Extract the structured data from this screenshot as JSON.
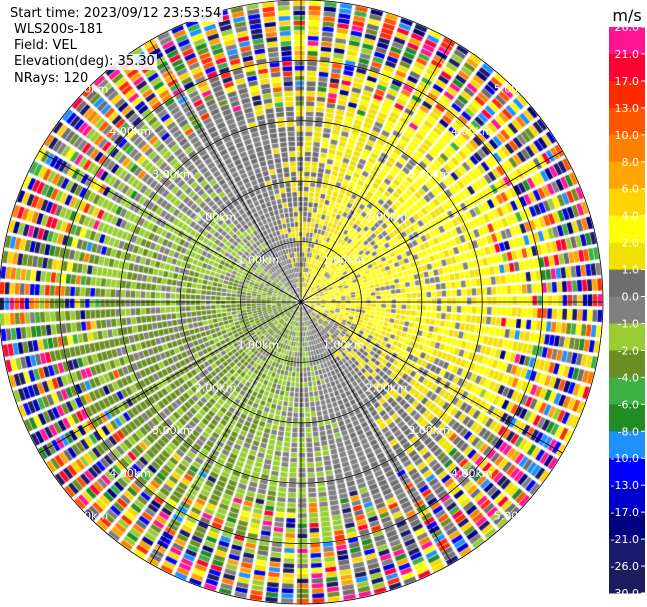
{
  "header": {
    "start_time": "Start time: 2023/09/12 23:53:54",
    "instrument": "WLS200s-181",
    "field": "Field: VEL",
    "elevation": "Elevation(deg): 35.30",
    "nrays": "NRays: 120"
  },
  "chart_data": {
    "type": "heatmap",
    "projection": "polar-ppi",
    "field": "VEL",
    "units": "m/s",
    "colorbar": {
      "title": "m/s",
      "ticks": [
        "26.0",
        "21.0",
        "17.0",
        "13.0",
        "10.0",
        "8.0",
        "6.0",
        "4.0",
        "2.0",
        "1.0",
        "0.0",
        "-1.0",
        "-2.0",
        "-4.0",
        "-6.0",
        "-8.0",
        "-10.0",
        "-13.0",
        "-17.0",
        "-21.0",
        "-26.0",
        "-30.0"
      ],
      "colors": [
        "#ff1493",
        "#ff0033",
        "#ff2a00",
        "#ff5500",
        "#ff7f00",
        "#ffa500",
        "#ffd400",
        "#ffff00",
        "#f2e200",
        "#6e6e6e",
        "#808080",
        "#9acd32",
        "#6b8e23",
        "#3cb043",
        "#228b22",
        "#1e90ff",
        "#0000ff",
        "#0000cd",
        "#000080",
        "#191970",
        "#1c1c5c"
      ]
    },
    "range_rings": [
      {
        "range_km": 1.0,
        "label": "1.00km"
      },
      {
        "range_km": 2.0,
        "label": "2.00km"
      },
      {
        "range_km": 3.0,
        "label": "3.00km"
      },
      {
        "range_km": 4.0,
        "label": "4.00km"
      },
      {
        "range_km": 5.0,
        "label": "5.00km"
      }
    ],
    "max_range_km": 5.0,
    "nrays": 120,
    "azimuth_spokes_deg": [
      0,
      30,
      60,
      90,
      120,
      150,
      180,
      210,
      240,
      270,
      300,
      330
    ],
    "wind_direction_from_deg": 245,
    "inner_velocity_mps": 2.5,
    "outer_noise_start_km": 3.2
  }
}
